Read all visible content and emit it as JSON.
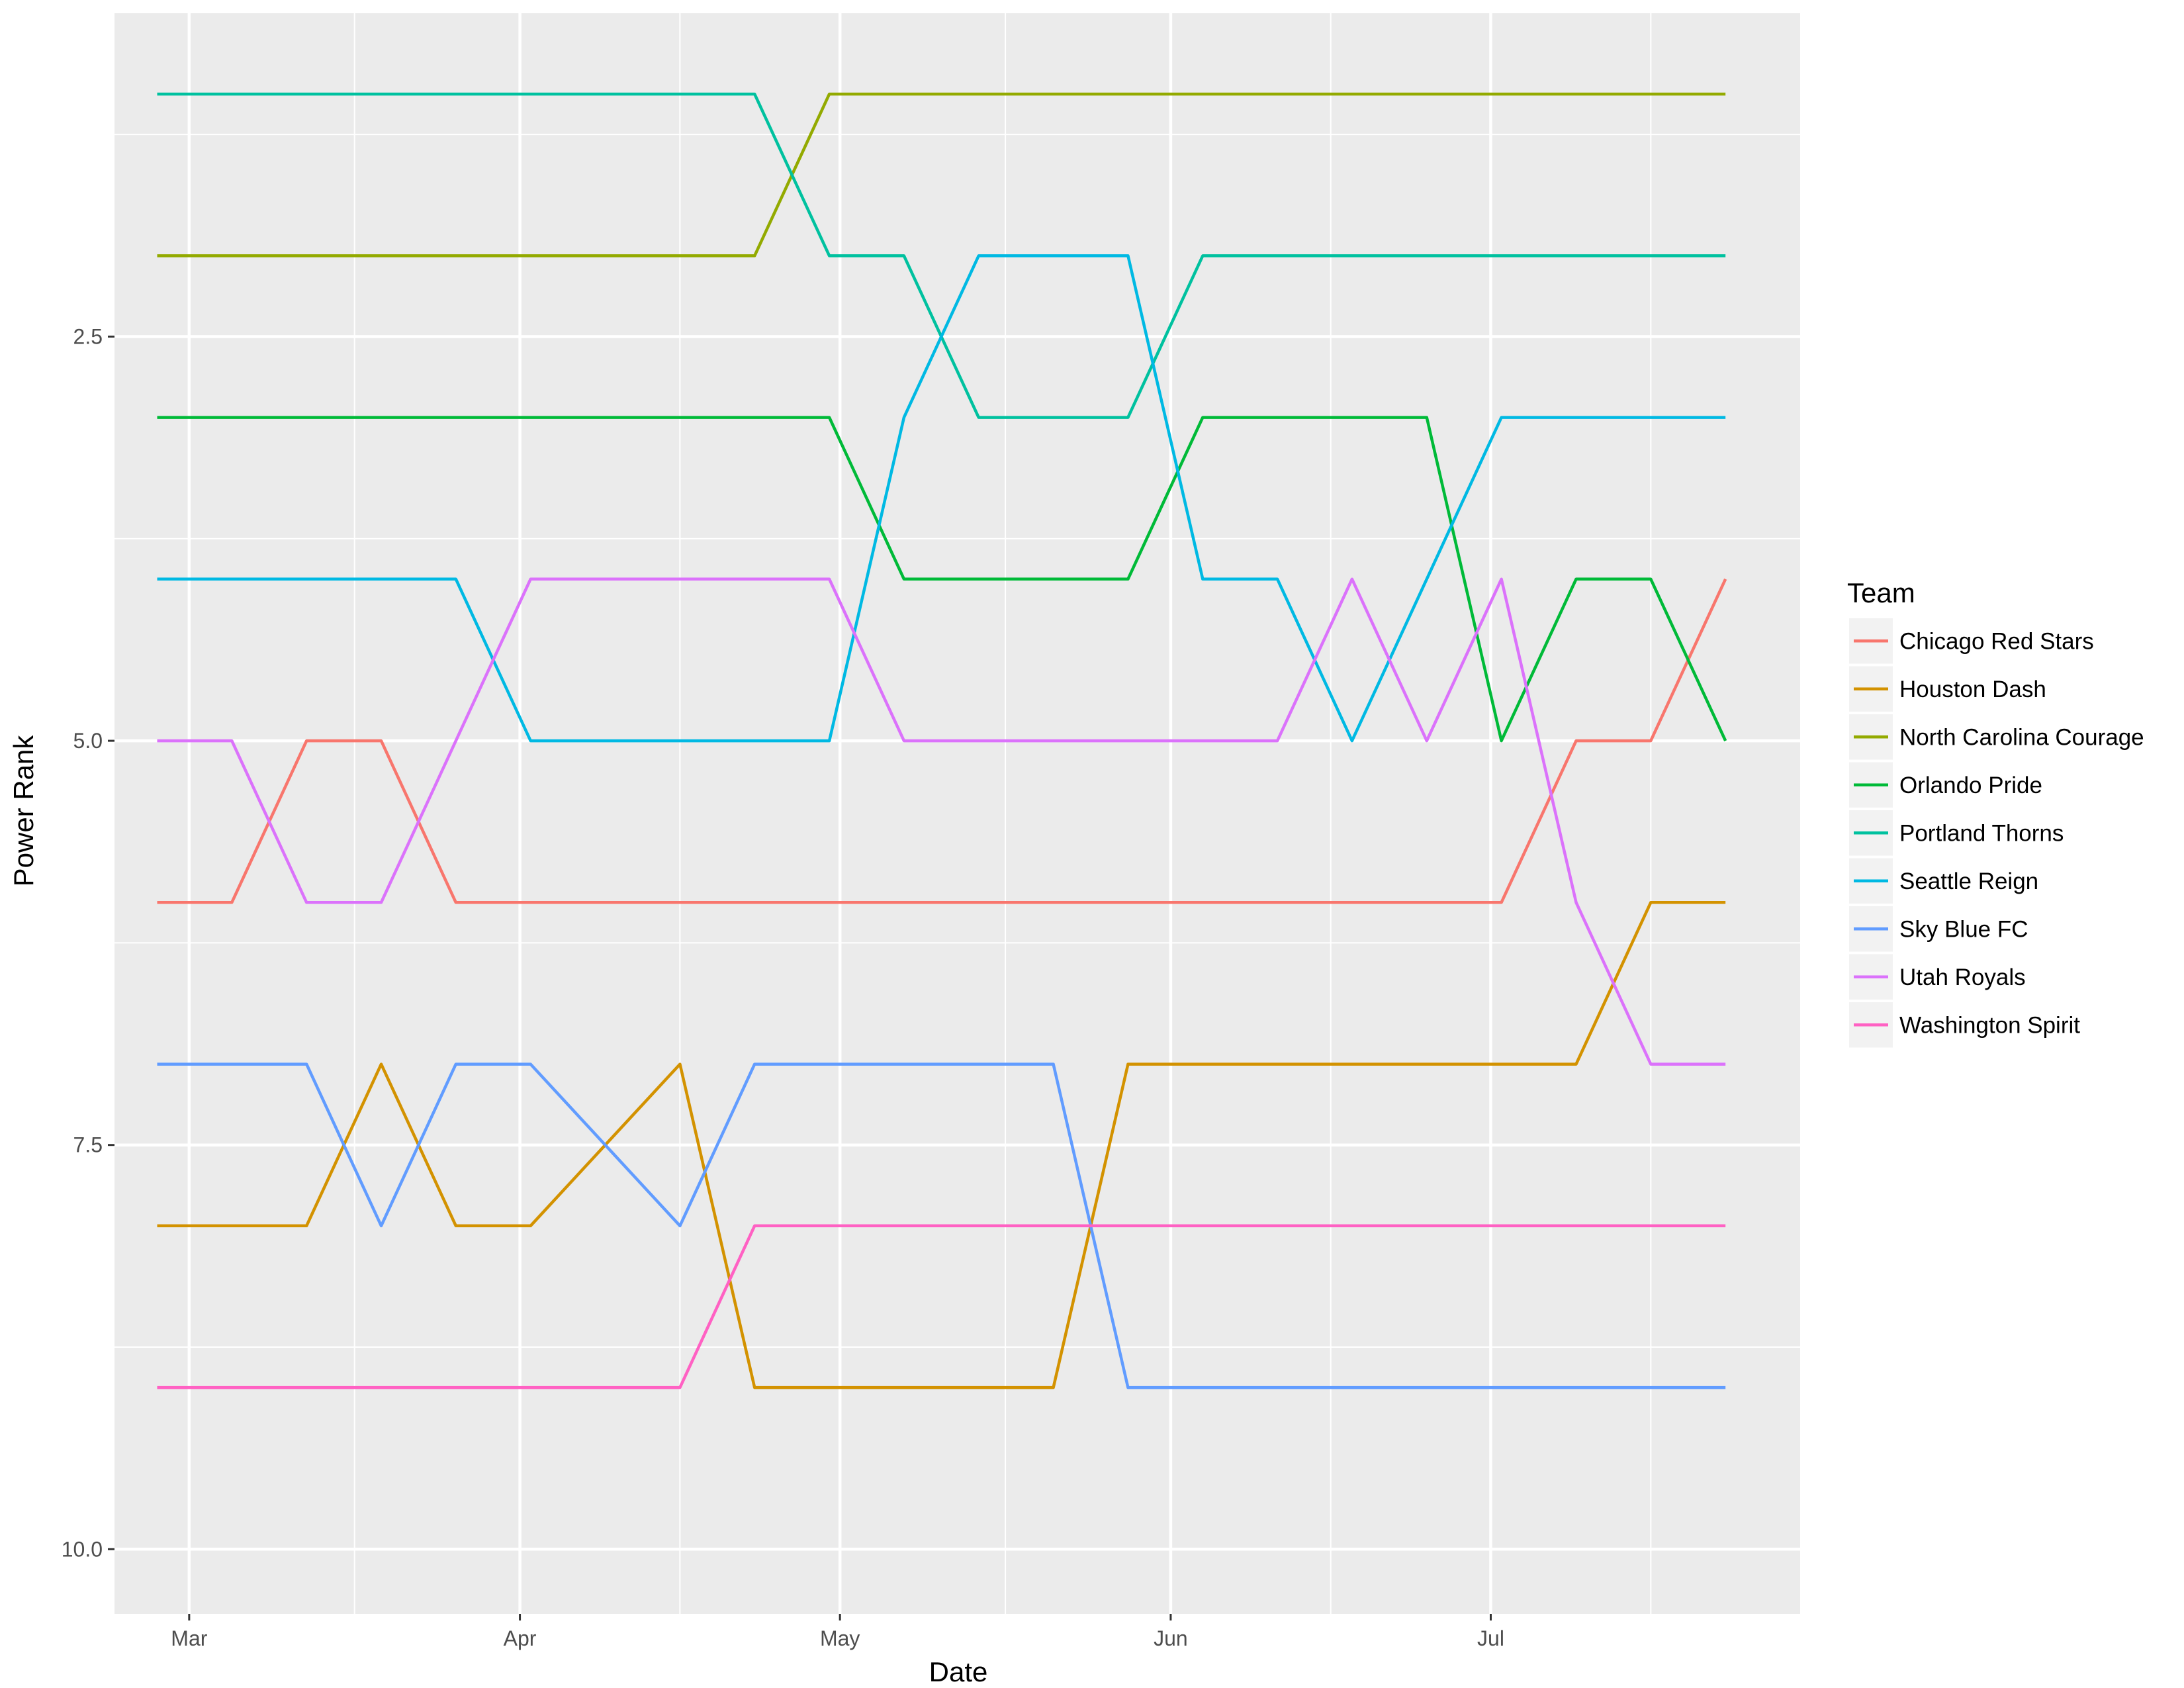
{
  "chart_data": {
    "type": "line",
    "title": "",
    "xlabel": "Date",
    "ylabel": "Power Rank",
    "y_reversed": true,
    "ylim": [
      0.5,
      10.4
    ],
    "xlim": [
      "2018-02-22",
      "2018-07-30"
    ],
    "y_ticks": [
      2.5,
      5.0,
      7.5,
      10.0
    ],
    "y_tick_labels": [
      "2.5",
      "5.0",
      "7.5",
      "10.0"
    ],
    "x_ticks": [
      "2018-03-01",
      "2018-04-01",
      "2018-05-01",
      "2018-06-01",
      "2018-07-01"
    ],
    "x_tick_labels": [
      "Mar",
      "Apr",
      "May",
      "Jun",
      "Jul"
    ],
    "grid": true,
    "legend": {
      "title": "Team",
      "position": "right"
    },
    "x": [
      "2018-02-26",
      "2018-03-05",
      "2018-03-12",
      "2018-03-19",
      "2018-03-26",
      "2018-04-02",
      "2018-04-09",
      "2018-04-16",
      "2018-04-23",
      "2018-04-30",
      "2018-05-07",
      "2018-05-14",
      "2018-05-21",
      "2018-05-28",
      "2018-06-04",
      "2018-06-11",
      "2018-06-18",
      "2018-06-25",
      "2018-07-02",
      "2018-07-09",
      "2018-07-16",
      "2018-07-23"
    ],
    "series": [
      {
        "name": "Chicago Red Stars",
        "color": "#F8766D",
        "values": [
          6,
          6,
          5,
          5,
          6,
          6,
          6,
          6,
          6,
          6,
          6,
          6,
          6,
          6,
          6,
          6,
          6,
          6,
          6,
          5,
          5,
          4
        ]
      },
      {
        "name": "Houston Dash",
        "color": "#D39200",
        "values": [
          8,
          8,
          8,
          7,
          8,
          8,
          7.5,
          7,
          9,
          9,
          9,
          9,
          9,
          7,
          7,
          7,
          7,
          7,
          7,
          7,
          6,
          6
        ]
      },
      {
        "name": "North Carolina Courage",
        "color": "#93AA00",
        "values": [
          2,
          2,
          2,
          2,
          2,
          2,
          2,
          2,
          2,
          1,
          1,
          1,
          1,
          1,
          1,
          1,
          1,
          1,
          1,
          1,
          1,
          1
        ]
      },
      {
        "name": "Orlando Pride",
        "color": "#00BA38",
        "values": [
          3,
          3,
          3,
          3,
          3,
          3,
          3,
          3,
          3,
          3,
          4,
          4,
          4,
          4,
          3,
          3,
          3,
          3,
          5,
          4,
          4,
          5
        ]
      },
      {
        "name": "Portland Thorns",
        "color": "#00C19F",
        "values": [
          1,
          1,
          1,
          1,
          1,
          1,
          1,
          1,
          1,
          2,
          2,
          3,
          3,
          3,
          2,
          2,
          2,
          2,
          2,
          2,
          2,
          2
        ]
      },
      {
        "name": "Seattle Reign",
        "color": "#00B9E3",
        "values": [
          4,
          4,
          4,
          4,
          4,
          5,
          5,
          5,
          5,
          5,
          3,
          2,
          2,
          2,
          4,
          4,
          5,
          4,
          3,
          3,
          3,
          3
        ]
      },
      {
        "name": "Sky Blue FC",
        "color": "#619CFF",
        "values": [
          7,
          7,
          7,
          8,
          7,
          7,
          7.5,
          8,
          7,
          7,
          7,
          7,
          7,
          9,
          9,
          9,
          9,
          9,
          9,
          9,
          9,
          9
        ]
      },
      {
        "name": "Utah Royals",
        "color": "#DB72FB",
        "values": [
          5,
          5,
          6,
          6,
          5,
          4,
          4,
          4,
          4,
          4,
          5,
          5,
          5,
          5,
          5,
          5,
          4,
          5,
          4,
          6,
          7,
          7
        ]
      },
      {
        "name": "Washington Spirit",
        "color": "#FF61C3",
        "values": [
          9,
          9,
          9,
          9,
          9,
          9,
          9,
          9,
          8,
          8,
          8,
          8,
          8,
          8,
          8,
          8,
          8,
          8,
          8,
          8,
          8,
          8
        ]
      }
    ]
  }
}
